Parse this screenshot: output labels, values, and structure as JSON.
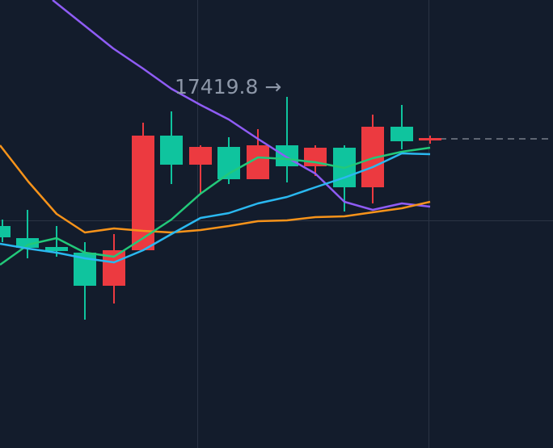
{
  "annotation": {
    "text": "17419.8 →"
  }
}
